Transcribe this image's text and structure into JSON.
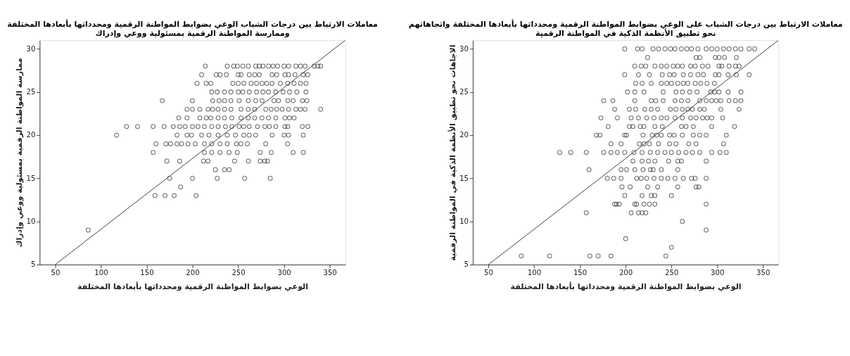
{
  "chart_data": [
    {
      "type": "scatter",
      "title": "معاملات الارتباط بين درجات الشباب الوعي بضوابط المواطنة الرقمية ومحدداتها بأبعادها المختلفة\nوممارسة المواطنة الرقمية بمسئولية ووعي وإدراك",
      "xlabel": "الوعي بضوابط المواطنة الرقمية ومحدداتها بأبعادها المختلفة",
      "ylabel": "ممارسة المواطنة الرقمية بمسئولية ووعي وإدراك",
      "xlim": [
        33,
        367
      ],
      "ylim": [
        5,
        31
      ],
      "xticks": [
        50,
        100,
        150,
        200,
        250,
        300,
        350
      ],
      "yticks": [
        5,
        10,
        15,
        20,
        25,
        30
      ],
      "grid": false,
      "series": [
        {
          "marker": "circle",
          "color": "#333333",
          "x": [
            214,
            238,
            245,
            249,
            255,
            261,
            269,
            273,
            277,
            283,
            288,
            293,
            300,
            305,
            313,
            318,
            323,
            333,
            337,
            340,
            210,
            226,
            230,
            237,
            250,
            253,
            262,
            268,
            273,
            287,
            292,
            301,
            305,
            312,
            321,
            326,
            205,
            215,
            220,
            244,
            250,
            256,
            264,
            270,
            276,
            281,
            287,
            296,
            304,
            311,
            318,
            324,
            221,
            227,
            235,
            242,
            250,
            255,
            262,
            270,
            277,
            283,
            291,
            299,
            306,
            314,
            324,
            167,
            200,
            222,
            229,
            235,
            242,
            251,
            261,
            269,
            276,
            289,
            294,
            304,
            310,
            320,
            325,
            194,
            200,
            208,
            217,
            222,
            228,
            235,
            242,
            253,
            261,
            268,
            280,
            286,
            292,
            298,
            305,
            313,
            318,
            323,
            340,
            185,
            194,
            208,
            215,
            220,
            228,
            235,
            243,
            253,
            261,
            268,
            276,
            283,
            291,
            301,
            306,
            311,
            128,
            140,
            157,
            169,
            179,
            186,
            192,
            200,
            206,
            213,
            221,
            228,
            236,
            243,
            251,
            256,
            262,
            271,
            279,
            284,
            291,
            301,
            304,
            320,
            326,
            117,
            183,
            194,
            199,
            210,
            218,
            228,
            238,
            247,
            256,
            262,
            269,
            287,
            300,
            305,
            321,
            160,
            171,
            176,
            183,
            188,
            195,
            203,
            213,
            221,
            230,
            238,
            248,
            253,
            260,
            280,
            304,
            157,
            213,
            221,
            230,
            240,
            249,
            274,
            286,
            310,
            321,
            172,
            186,
            212,
            217,
            246,
            261,
            274,
            279,
            282,
            225,
            235,
            240,
            175,
            200,
            227,
            257,
            285,
            187,
            159,
            170,
            180,
            204,
            86
          ],
          "values": [
            28,
            28,
            28,
            28,
            28,
            28,
            28,
            28,
            28,
            28,
            28,
            28,
            28,
            28,
            28,
            28,
            28,
            28,
            28,
            28,
            27,
            27,
            27,
            27,
            27,
            27,
            27,
            27,
            27,
            27,
            27,
            27,
            27,
            27,
            27,
            27,
            26,
            26,
            26,
            26,
            26,
            26,
            26,
            26,
            26,
            26,
            26,
            26,
            26,
            26,
            26,
            26,
            25,
            25,
            25,
            25,
            25,
            25,
            25,
            25,
            25,
            25,
            25,
            25,
            25,
            25,
            25,
            24,
            24,
            24,
            24,
            24,
            24,
            24,
            24,
            24,
            24,
            24,
            24,
            24,
            24,
            24,
            24,
            23,
            23,
            23,
            23,
            23,
            23,
            23,
            23,
            23,
            23,
            23,
            23,
            23,
            23,
            23,
            23,
            23,
            23,
            23,
            23,
            22,
            22,
            22,
            22,
            22,
            22,
            22,
            22,
            22,
            22,
            22,
            22,
            22,
            22,
            22,
            22,
            22,
            21,
            21,
            21,
            21,
            21,
            21,
            21,
            21,
            21,
            21,
            21,
            21,
            21,
            21,
            21,
            21,
            21,
            21,
            21,
            21,
            21,
            21,
            21,
            21,
            21,
            20,
            20,
            20,
            20,
            20,
            20,
            20,
            20,
            20,
            20,
            20,
            20,
            20,
            20,
            20,
            20,
            19,
            19,
            19,
            19,
            19,
            19,
            19,
            19,
            19,
            19,
            19,
            19,
            19,
            19,
            19,
            19,
            18,
            18,
            18,
            18,
            18,
            18,
            18,
            18,
            18,
            18,
            17,
            17,
            17,
            17,
            17,
            17,
            17,
            17,
            17,
            16,
            16,
            16,
            15,
            15,
            15,
            15,
            15,
            14,
            13,
            13,
            13,
            13,
            9
          ]
        },
        {
          "type": "line",
          "marker": "none",
          "line_style": "solid",
          "color": "#333333",
          "x": [
            50,
            367
          ],
          "values": [
            5,
            31
          ]
        }
      ]
    },
    {
      "type": "scatter",
      "title": "معاملات الارتباط بين درجات الشباب على الوعي بضوابط المواطنة الرقمية ومحدداتها بأبعادها المختلفة واتجاهاتهم\nنحو تطبيق الأنظمة الذكية في المواطنة الرقمية",
      "xlabel": "الوعي بضوابط المواطنة الرقمية ومحدداتها بأبعادها المختلفة",
      "ylabel": "الاجاهات نحو تطبيق الأنظمة الذكية في المواطنة الرقمية",
      "xlim": [
        33,
        367
      ],
      "ylim": [
        5,
        31
      ],
      "xticks": [
        50,
        100,
        150,
        200,
        250,
        300,
        350
      ],
      "yticks": [
        5,
        10,
        15,
        20,
        25,
        30
      ],
      "grid": false,
      "series": [
        {
          "marker": "circle",
          "color": "#333333",
          "x": [
            199,
            213,
            218,
            230,
            236,
            243,
            249,
            254,
            261,
            267,
            272,
            279,
            288,
            294,
            300,
            307,
            313,
            320,
            326,
            335,
            341,
            224,
            277,
            281,
            298,
            302,
            308,
            321,
            210,
            217,
            222,
            232,
            239,
            245,
            252,
            257,
            262,
            271,
            276,
            284,
            290,
            302,
            305,
            313,
            320,
            324,
            199,
            214,
            226,
            240,
            248,
            253,
            263,
            271,
            279,
            285,
            298,
            302,
            312,
            321,
            335,
            211,
            218,
            228,
            239,
            245,
            250,
            257,
            263,
            268,
            276,
            282,
            289,
            297,
            202,
            210,
            220,
            241,
            255,
            262,
            270,
            278,
            293,
            297,
            302,
            312,
            326,
            176,
            186,
            210,
            228,
            233,
            241,
            254,
            261,
            268,
            281,
            288,
            294,
            299,
            304,
            313,
            320,
            326,
            188,
            204,
            211,
            221,
            228,
            235,
            249,
            255,
            262,
            268,
            273,
            281,
            286,
            304,
            324,
            173,
            191,
            206,
            214,
            223,
            231,
            239,
            245,
            254,
            262,
            271,
            277,
            284,
            289,
            294,
            306,
            181,
            204,
            208,
            216,
            220,
            232,
            240,
            261,
            266,
            274,
            294,
            319,
            168,
            172,
            199,
            201,
            219,
            229,
            234,
            239,
            248,
            253,
            262,
            274,
            281,
            288,
            310,
            184,
            195,
            215,
            220,
            226,
            236,
            248,
            255,
            269,
            277,
            307,
            128,
            140,
            157,
            176,
            184,
            191,
            199,
            209,
            218,
            227,
            235,
            243,
            250,
            258,
            266,
            273,
            281,
            294,
            303,
            310,
            208,
            218,
            225,
            232,
            247,
            257,
            261,
            288,
            160,
            195,
            201,
            210,
            219,
            227,
            230,
            239,
            257,
            180,
            187,
            195,
            212,
            217,
            223,
            231,
            239,
            246,
            254,
            263,
            272,
            276,
            288,
            196,
            205,
            224,
            235,
            257,
            277,
            280,
            199,
            218,
            228,
            232,
            250,
            188,
            190,
            193,
            210,
            212,
            220,
            226,
            232,
            288,
            157,
            206,
            214,
            218,
            222,
            262,
            288,
            200,
            250,
            86,
            117,
            161,
            170,
            184,
            244
          ],
          "values": [
            30,
            30,
            30,
            30,
            30,
            30,
            30,
            30,
            30,
            30,
            30,
            30,
            30,
            30,
            30,
            30,
            30,
            30,
            30,
            30,
            30,
            29,
            29,
            29,
            29,
            29,
            29,
            29,
            28,
            28,
            28,
            28,
            28,
            28,
            28,
            28,
            28,
            28,
            28,
            28,
            28,
            28,
            28,
            28,
            28,
            28,
            27,
            27,
            27,
            27,
            27,
            27,
            27,
            27,
            27,
            27,
            27,
            27,
            27,
            27,
            27,
            26,
            26,
            26,
            26,
            26,
            26,
            26,
            26,
            26,
            26,
            26,
            26,
            26,
            25,
            25,
            25,
            25,
            25,
            25,
            25,
            25,
            25,
            25,
            25,
            25,
            25,
            24,
            24,
            24,
            24,
            24,
            24,
            24,
            24,
            24,
            24,
            24,
            24,
            24,
            24,
            24,
            24,
            24,
            23,
            23,
            23,
            23,
            23,
            23,
            23,
            23,
            23,
            23,
            23,
            23,
            23,
            23,
            23,
            22,
            22,
            22,
            22,
            22,
            22,
            22,
            22,
            22,
            22,
            22,
            22,
            22,
            22,
            22,
            22,
            21,
            21,
            21,
            21,
            21,
            21,
            21,
            21,
            21,
            21,
            21,
            21,
            20,
            20,
            20,
            20,
            20,
            20,
            20,
            20,
            20,
            20,
            20,
            20,
            20,
            20,
            20,
            19,
            19,
            19,
            19,
            19,
            19,
            19,
            19,
            19,
            19,
            19,
            18,
            18,
            18,
            18,
            18,
            18,
            18,
            18,
            18,
            18,
            18,
            18,
            18,
            18,
            18,
            18,
            18,
            18,
            18,
            18,
            17,
            17,
            17,
            17,
            17,
            17,
            17,
            17,
            16,
            16,
            16,
            16,
            16,
            16,
            16,
            16,
            16,
            15,
            15,
            15,
            15,
            15,
            15,
            15,
            15,
            15,
            15,
            15,
            15,
            15,
            15,
            14,
            14,
            14,
            14,
            14,
            14,
            14,
            13,
            13,
            13,
            13,
            13,
            12,
            12,
            12,
            12,
            12,
            12,
            12,
            12,
            12,
            11,
            11,
            11,
            11,
            11,
            10,
            9,
            8,
            7,
            6,
            6,
            6,
            6,
            6,
            6
          ]
        },
        {
          "type": "line",
          "marker": "none",
          "line_style": "solid",
          "color": "#333333",
          "x": [
            50,
            367
          ],
          "values": [
            5,
            31
          ]
        }
      ]
    }
  ]
}
